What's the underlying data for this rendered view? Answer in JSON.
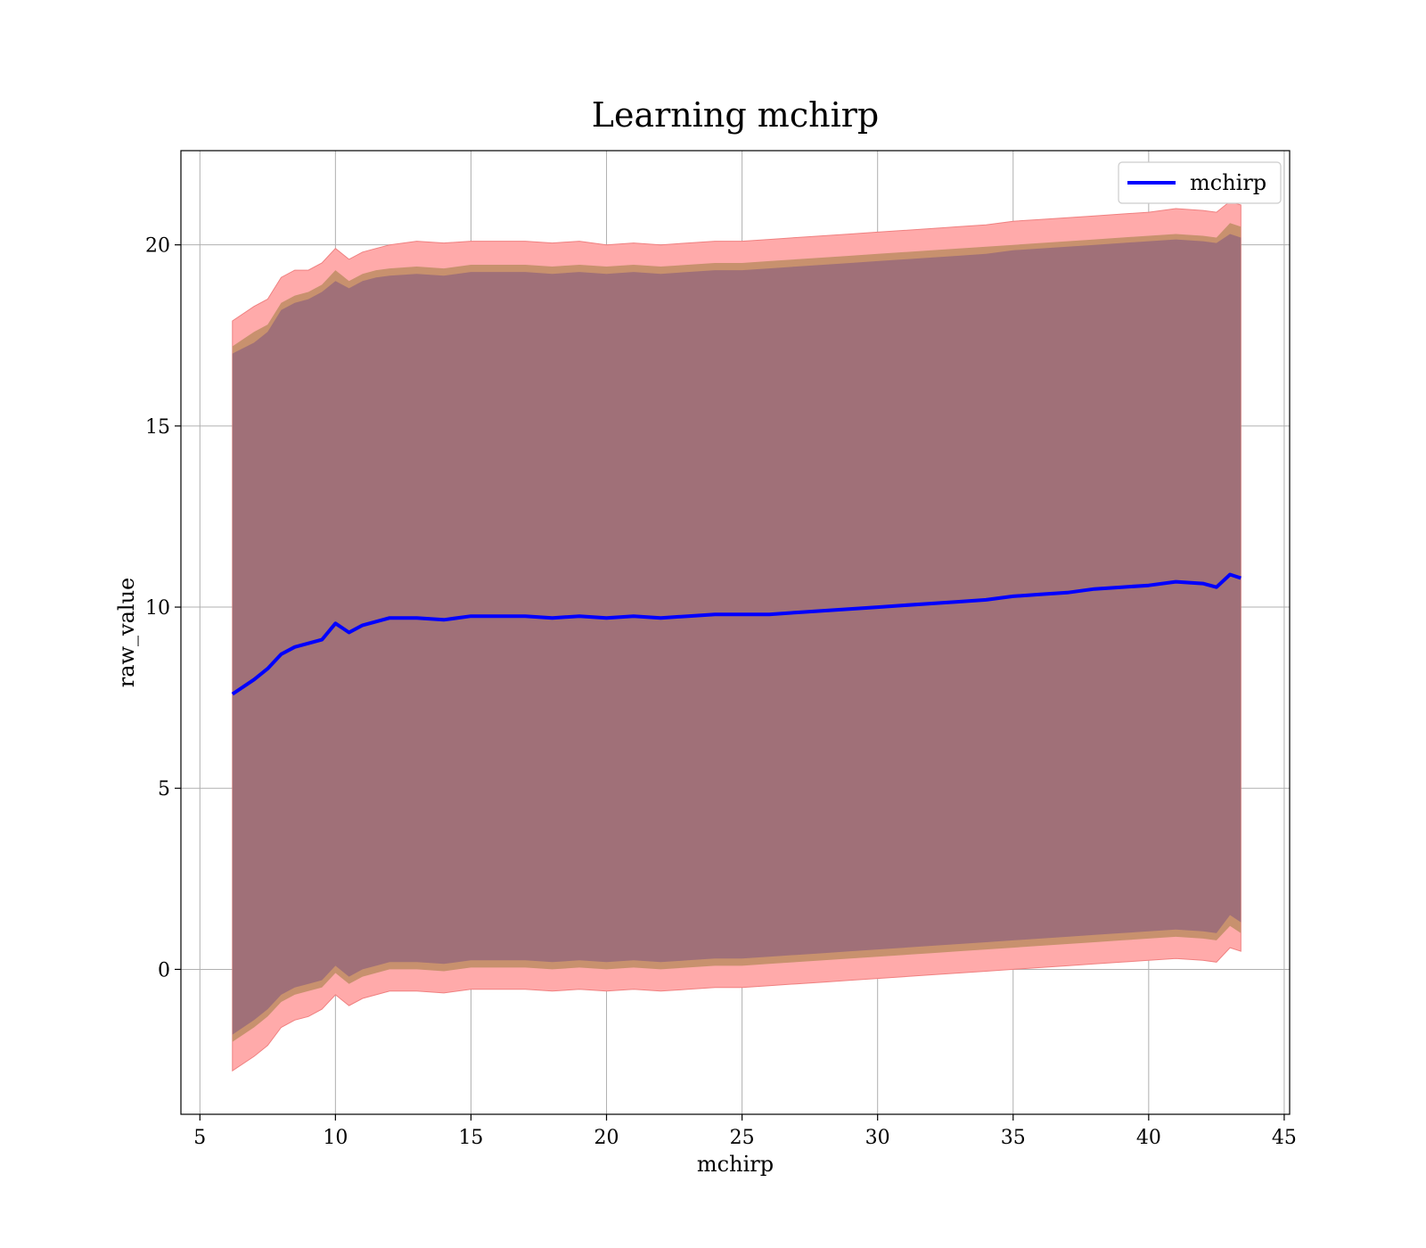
{
  "chart_data": {
    "type": "line",
    "title": "Learning mchirp",
    "xlabel": "mchirp",
    "ylabel": "raw_value",
    "xlim": [
      4.3,
      45.2
    ],
    "ylim": [
      -4.0,
      22.6
    ],
    "xticks": [
      5,
      10,
      15,
      20,
      25,
      30,
      35,
      40,
      45
    ],
    "yticks": [
      0,
      5,
      10,
      15,
      20
    ],
    "grid": true,
    "legend": {
      "placement": "top-right",
      "entries": [
        "mchirp"
      ]
    },
    "colors": {
      "mean_line": "#0000ff",
      "band_outer": "#ffaaaa",
      "band_mid": "#c8916e",
      "band_inner": "#a07078"
    },
    "series": [
      {
        "name": "mchirp",
        "x": [
          6.2,
          7.0,
          7.5,
          8.0,
          8.5,
          9.0,
          9.5,
          10.0,
          10.5,
          11.0,
          11.5,
          12.0,
          13.0,
          14.0,
          15.0,
          16.0,
          17.0,
          18.0,
          19.0,
          20.0,
          21.0,
          22.0,
          23.0,
          24.0,
          25.0,
          26.0,
          27.0,
          28.0,
          29.0,
          30.0,
          31.0,
          32.0,
          33.0,
          34.0,
          35.0,
          36.0,
          37.0,
          38.0,
          39.0,
          40.0,
          41.0,
          42.0,
          42.5,
          43.0,
          43.4
        ],
        "mean": [
          7.6,
          8.0,
          8.3,
          8.7,
          8.9,
          9.0,
          9.1,
          9.55,
          9.3,
          9.5,
          9.6,
          9.7,
          9.7,
          9.65,
          9.75,
          9.75,
          9.75,
          9.7,
          9.75,
          9.7,
          9.75,
          9.7,
          9.75,
          9.8,
          9.8,
          9.8,
          9.85,
          9.9,
          9.95,
          10.0,
          10.05,
          10.1,
          10.15,
          10.2,
          10.3,
          10.35,
          10.4,
          10.5,
          10.55,
          10.6,
          10.7,
          10.65,
          10.55,
          10.9,
          10.8
        ]
      }
    ],
    "bands": {
      "x": [
        6.2,
        7.0,
        7.5,
        8.0,
        8.5,
        9.0,
        9.5,
        10.0,
        10.5,
        11.0,
        11.5,
        12.0,
        13.0,
        14.0,
        15.0,
        16.0,
        17.0,
        18.0,
        19.0,
        20.0,
        21.0,
        22.0,
        23.0,
        24.0,
        25.0,
        26.0,
        27.0,
        28.0,
        29.0,
        30.0,
        31.0,
        32.0,
        33.0,
        34.0,
        35.0,
        36.0,
        37.0,
        38.0,
        39.0,
        40.0,
        41.0,
        42.0,
        42.5,
        43.0,
        43.4
      ],
      "outer_upper": [
        17.9,
        18.3,
        18.5,
        19.1,
        19.3,
        19.3,
        19.5,
        19.9,
        19.6,
        19.8,
        19.9,
        20.0,
        20.1,
        20.05,
        20.1,
        20.1,
        20.1,
        20.05,
        20.1,
        20.0,
        20.05,
        20.0,
        20.05,
        20.1,
        20.1,
        20.15,
        20.2,
        20.25,
        20.3,
        20.35,
        20.4,
        20.45,
        20.5,
        20.55,
        20.65,
        20.7,
        20.75,
        20.8,
        20.85,
        20.9,
        21.0,
        20.95,
        20.9,
        21.2,
        21.1
      ],
      "mid_upper": [
        17.2,
        17.6,
        17.8,
        18.4,
        18.6,
        18.7,
        18.9,
        19.3,
        19.0,
        19.2,
        19.3,
        19.35,
        19.4,
        19.35,
        19.45,
        19.45,
        19.45,
        19.4,
        19.45,
        19.4,
        19.45,
        19.4,
        19.45,
        19.5,
        19.5,
        19.55,
        19.6,
        19.65,
        19.7,
        19.75,
        19.8,
        19.85,
        19.9,
        19.95,
        20.0,
        20.05,
        20.1,
        20.15,
        20.2,
        20.25,
        20.3,
        20.25,
        20.2,
        20.6,
        20.5
      ],
      "inner_upper": [
        17.0,
        17.3,
        17.6,
        18.2,
        18.4,
        18.5,
        18.7,
        19.0,
        18.8,
        19.0,
        19.1,
        19.15,
        19.2,
        19.15,
        19.25,
        19.25,
        19.25,
        19.2,
        19.25,
        19.2,
        19.25,
        19.2,
        19.25,
        19.3,
        19.3,
        19.35,
        19.4,
        19.45,
        19.5,
        19.55,
        19.6,
        19.65,
        19.7,
        19.75,
        19.85,
        19.9,
        19.95,
        20.0,
        20.05,
        20.1,
        20.15,
        20.1,
        20.05,
        20.3,
        20.2
      ],
      "inner_lower": [
        -1.8,
        -1.4,
        -1.1,
        -0.7,
        -0.5,
        -0.4,
        -0.3,
        0.1,
        -0.2,
        0.0,
        0.1,
        0.2,
        0.2,
        0.15,
        0.25,
        0.25,
        0.25,
        0.2,
        0.25,
        0.2,
        0.25,
        0.2,
        0.25,
        0.3,
        0.3,
        0.35,
        0.4,
        0.45,
        0.5,
        0.55,
        0.6,
        0.65,
        0.7,
        0.75,
        0.8,
        0.85,
        0.9,
        0.95,
        1.0,
        1.05,
        1.1,
        1.05,
        1.0,
        1.5,
        1.3
      ],
      "mid_lower": [
        -2.0,
        -1.6,
        -1.3,
        -0.9,
        -0.7,
        -0.6,
        -0.5,
        -0.1,
        -0.4,
        -0.2,
        -0.1,
        0.0,
        0.0,
        -0.05,
        0.05,
        0.05,
        0.05,
        0.0,
        0.05,
        0.0,
        0.05,
        0.0,
        0.05,
        0.1,
        0.1,
        0.15,
        0.2,
        0.25,
        0.3,
        0.35,
        0.4,
        0.45,
        0.5,
        0.55,
        0.6,
        0.65,
        0.7,
        0.75,
        0.8,
        0.85,
        0.9,
        0.85,
        0.8,
        1.2,
        1.0
      ],
      "outer_lower": [
        -2.8,
        -2.4,
        -2.1,
        -1.6,
        -1.4,
        -1.3,
        -1.1,
        -0.7,
        -1.0,
        -0.8,
        -0.7,
        -0.6,
        -0.6,
        -0.65,
        -0.55,
        -0.55,
        -0.55,
        -0.6,
        -0.55,
        -0.6,
        -0.55,
        -0.6,
        -0.55,
        -0.5,
        -0.5,
        -0.45,
        -0.4,
        -0.35,
        -0.3,
        -0.25,
        -0.2,
        -0.15,
        -0.1,
        -0.05,
        0.0,
        0.05,
        0.1,
        0.15,
        0.2,
        0.25,
        0.3,
        0.25,
        0.2,
        0.6,
        0.5
      ]
    }
  }
}
